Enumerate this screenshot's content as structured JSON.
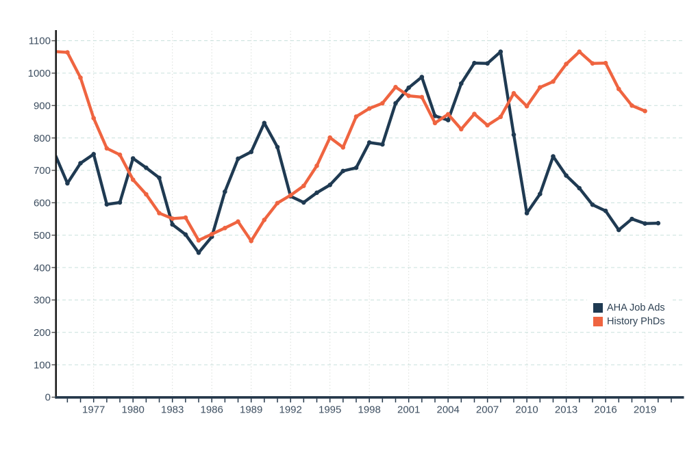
{
  "chart_data": {
    "type": "line",
    "title": "",
    "xlabel": "",
    "ylabel": "",
    "x": [
      1974,
      1975,
      1976,
      1977,
      1978,
      1979,
      1980,
      1981,
      1982,
      1983,
      1984,
      1985,
      1986,
      1987,
      1988,
      1989,
      1990,
      1991,
      1992,
      1993,
      1994,
      1995,
      1996,
      1997,
      1998,
      1999,
      2000,
      2001,
      2002,
      2003,
      2004,
      2005,
      2006,
      2007,
      2008,
      2009,
      2010,
      2011,
      2012,
      2013,
      2014,
      2015,
      2016,
      2017,
      2018,
      2019,
      2020
    ],
    "series": [
      {
        "name": "AHA Job Ads",
        "color": "#1f3a52",
        "values": [
          755,
          660,
          722,
          750,
          595,
          601,
          737,
          708,
          677,
          533,
          502,
          446,
          495,
          634,
          736,
          757,
          846,
          772,
          620,
          601,
          631,
          655,
          698,
          708,
          786,
          780,
          907,
          955,
          988,
          868,
          855,
          968,
          1031,
          1030,
          1066,
          810,
          568,
          627,
          743,
          684,
          645,
          594,
          575,
          516,
          550,
          536,
          537
        ]
      },
      {
        "name": "History PhDs",
        "color": "#ef6440",
        "values": [
          1067,
          1064,
          986,
          861,
          768,
          748,
          671,
          626,
          568,
          551,
          554,
          484,
          503,
          522,
          542,
          482,
          547,
          599,
          623,
          652,
          714,
          801,
          771,
          866,
          891,
          907,
          957,
          930,
          926,
          846,
          873,
          827,
          874,
          839,
          865,
          938,
          898,
          956,
          974,
          1028,
          1066,
          1030,
          1031,
          951,
          900,
          883,
          null
        ]
      }
    ],
    "ylim": [
      0,
      1100
    ],
    "y_tick_step": 100,
    "x_ticks_labeled": [
      1977,
      1980,
      1983,
      1986,
      1989,
      1992,
      1995,
      1998,
      2001,
      2004,
      2007,
      2010,
      2013,
      2016,
      2019
    ],
    "legend_position": "middle-right",
    "grid": {
      "horizontal": "dashed",
      "vertical": "dotted"
    }
  },
  "axes": {
    "y_tick_labels": [
      "0",
      "100",
      "200",
      "300",
      "400",
      "500",
      "600",
      "700",
      "800",
      "900",
      "1000",
      "1100"
    ],
    "x_tick_labels": [
      "1977",
      "1980",
      "1983",
      "1986",
      "1989",
      "1992",
      "1995",
      "1998",
      "2001",
      "2004",
      "2007",
      "2010",
      "2013",
      "2016",
      "2019"
    ]
  },
  "legend": {
    "items": [
      {
        "label": "AHA Job Ads",
        "color": "#1f3a52"
      },
      {
        "label": "History PhDs",
        "color": "#ef6440"
      }
    ]
  },
  "colors": {
    "background": "#ffffff",
    "h_gridline": "#c8e0dc",
    "v_gridline": "#d9ded9",
    "y_axis": "#1b1b1b",
    "y_tick": "#4a4a4a",
    "x_axis": "#24374a",
    "tick_label": "#3d4e60",
    "legend_text": "#2f4254"
  }
}
